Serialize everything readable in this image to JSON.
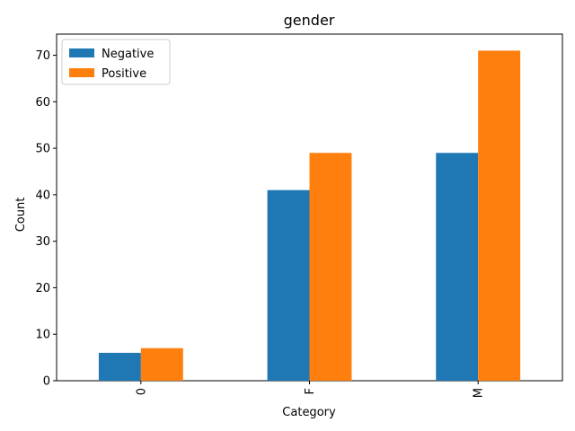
{
  "chart_data": {
    "type": "bar",
    "title": "gender",
    "xlabel": "Category",
    "ylabel": "Count",
    "categories": [
      "0",
      "F",
      "M"
    ],
    "series": [
      {
        "name": "Negative",
        "values": [
          6,
          41,
          49
        ],
        "color": "#1f77b4"
      },
      {
        "name": "Positive",
        "values": [
          7,
          49,
          71
        ],
        "color": "#ff7f0e"
      }
    ],
    "ylim": [
      0,
      74.55
    ],
    "yticks": [
      0,
      10,
      20,
      30,
      40,
      50,
      60,
      70
    ],
    "grid": false,
    "legend_position": "top-left"
  }
}
